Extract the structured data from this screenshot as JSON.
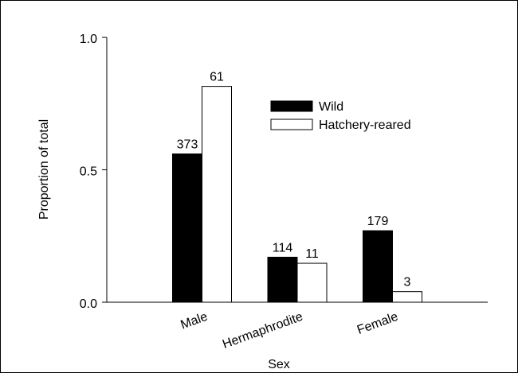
{
  "chart_data": {
    "type": "bar",
    "xlabel": "Sex",
    "ylabel": "Proportion of total",
    "categories": [
      "Male",
      "Hermaphrodite",
      "Female"
    ],
    "series": [
      {
        "name": "Wild",
        "color": "#000000",
        "values": [
          0.56,
          0.17,
          0.27
        ],
        "counts": [
          "373",
          "114",
          "179"
        ]
      },
      {
        "name": "Hatchery-reared",
        "color": "#ffffff",
        "values": [
          0.815,
          0.147,
          0.04
        ],
        "counts": [
          "61",
          "11",
          "3"
        ]
      }
    ],
    "ylim": [
      0,
      1
    ],
    "yticks": [
      {
        "value": 0,
        "label": "0.0"
      },
      {
        "value": 0.5,
        "label": "0.5"
      },
      {
        "value": 1,
        "label": "1.0"
      }
    ],
    "grid": false,
    "legend": "upper right"
  }
}
